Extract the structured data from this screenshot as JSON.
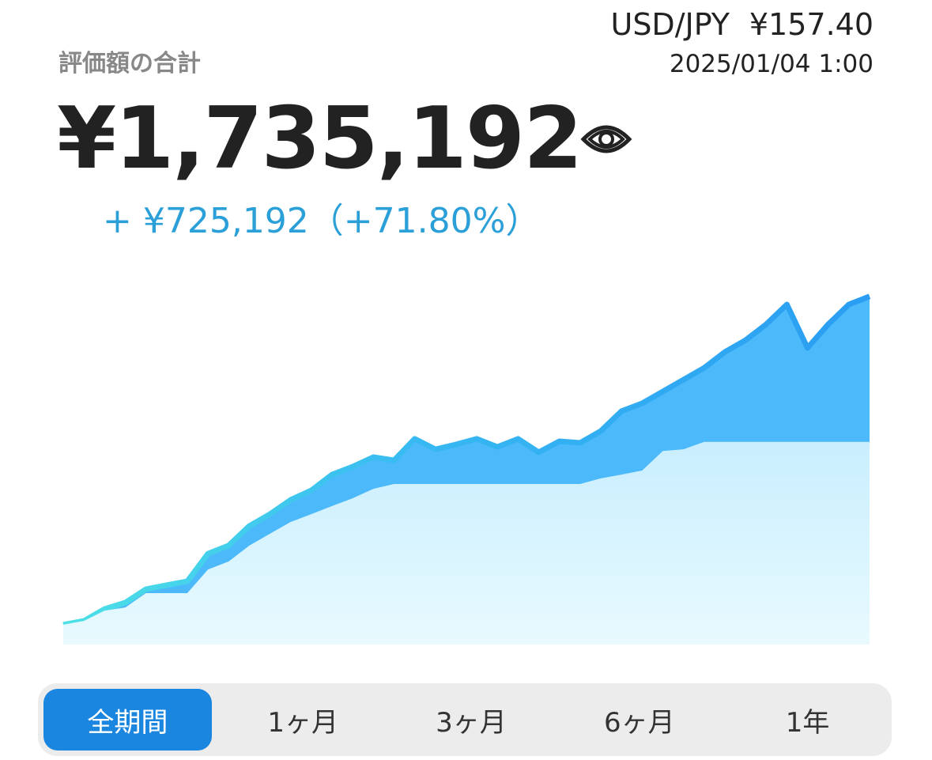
{
  "header": {
    "pair": "USD/JPY",
    "rate": "¥157.40",
    "timestamp": "2025/01/04 1:00",
    "label": "評価額の合計",
    "total": "¥1,735,192",
    "gain": "+ ¥725,192（+71.80%）"
  },
  "chart_data": {
    "type": "area",
    "ylim": [
      0,
      1750000
    ],
    "series": [
      {
        "color": "#4cb9fa",
        "values": [
          99000,
          118000,
          177000,
          209000,
          276000,
          296000,
          315000,
          453000,
          493000,
          591000,
          650000,
          721000,
          768000,
          847000,
          887000,
          934000,
          918000,
          1025000,
          973000,
          997000,
          1025000,
          985000,
          1025000,
          958000,
          1013000,
          1005000,
          1064000,
          1163000,
          1202000,
          1261000,
          1320000,
          1379000,
          1458000,
          1517000,
          1596000,
          1695000,
          1478000,
          1596000,
          1695000,
          1735192
        ]
      },
      {
        "color": "#d4f1fe",
        "values": [
          99000,
          118000,
          169000,
          185000,
          256000,
          256000,
          256000,
          374000,
          414000,
          493000,
          552000,
          611000,
          650000,
          690000,
          729000,
          776000,
          800000,
          800000,
          800000,
          800000,
          800000,
          800000,
          800000,
          800000,
          800000,
          800000,
          828000,
          847000,
          867000,
          965000,
          973000,
          1010000,
          1010000,
          1010000,
          1010000,
          1010000,
          1010000,
          1010000,
          1010000,
          1010000
        ]
      }
    ]
  },
  "tabs": {
    "items": [
      "全期間",
      "1ヶ月",
      "3ヶ月",
      "6ヶ月",
      "1年"
    ],
    "selected": 0
  }
}
